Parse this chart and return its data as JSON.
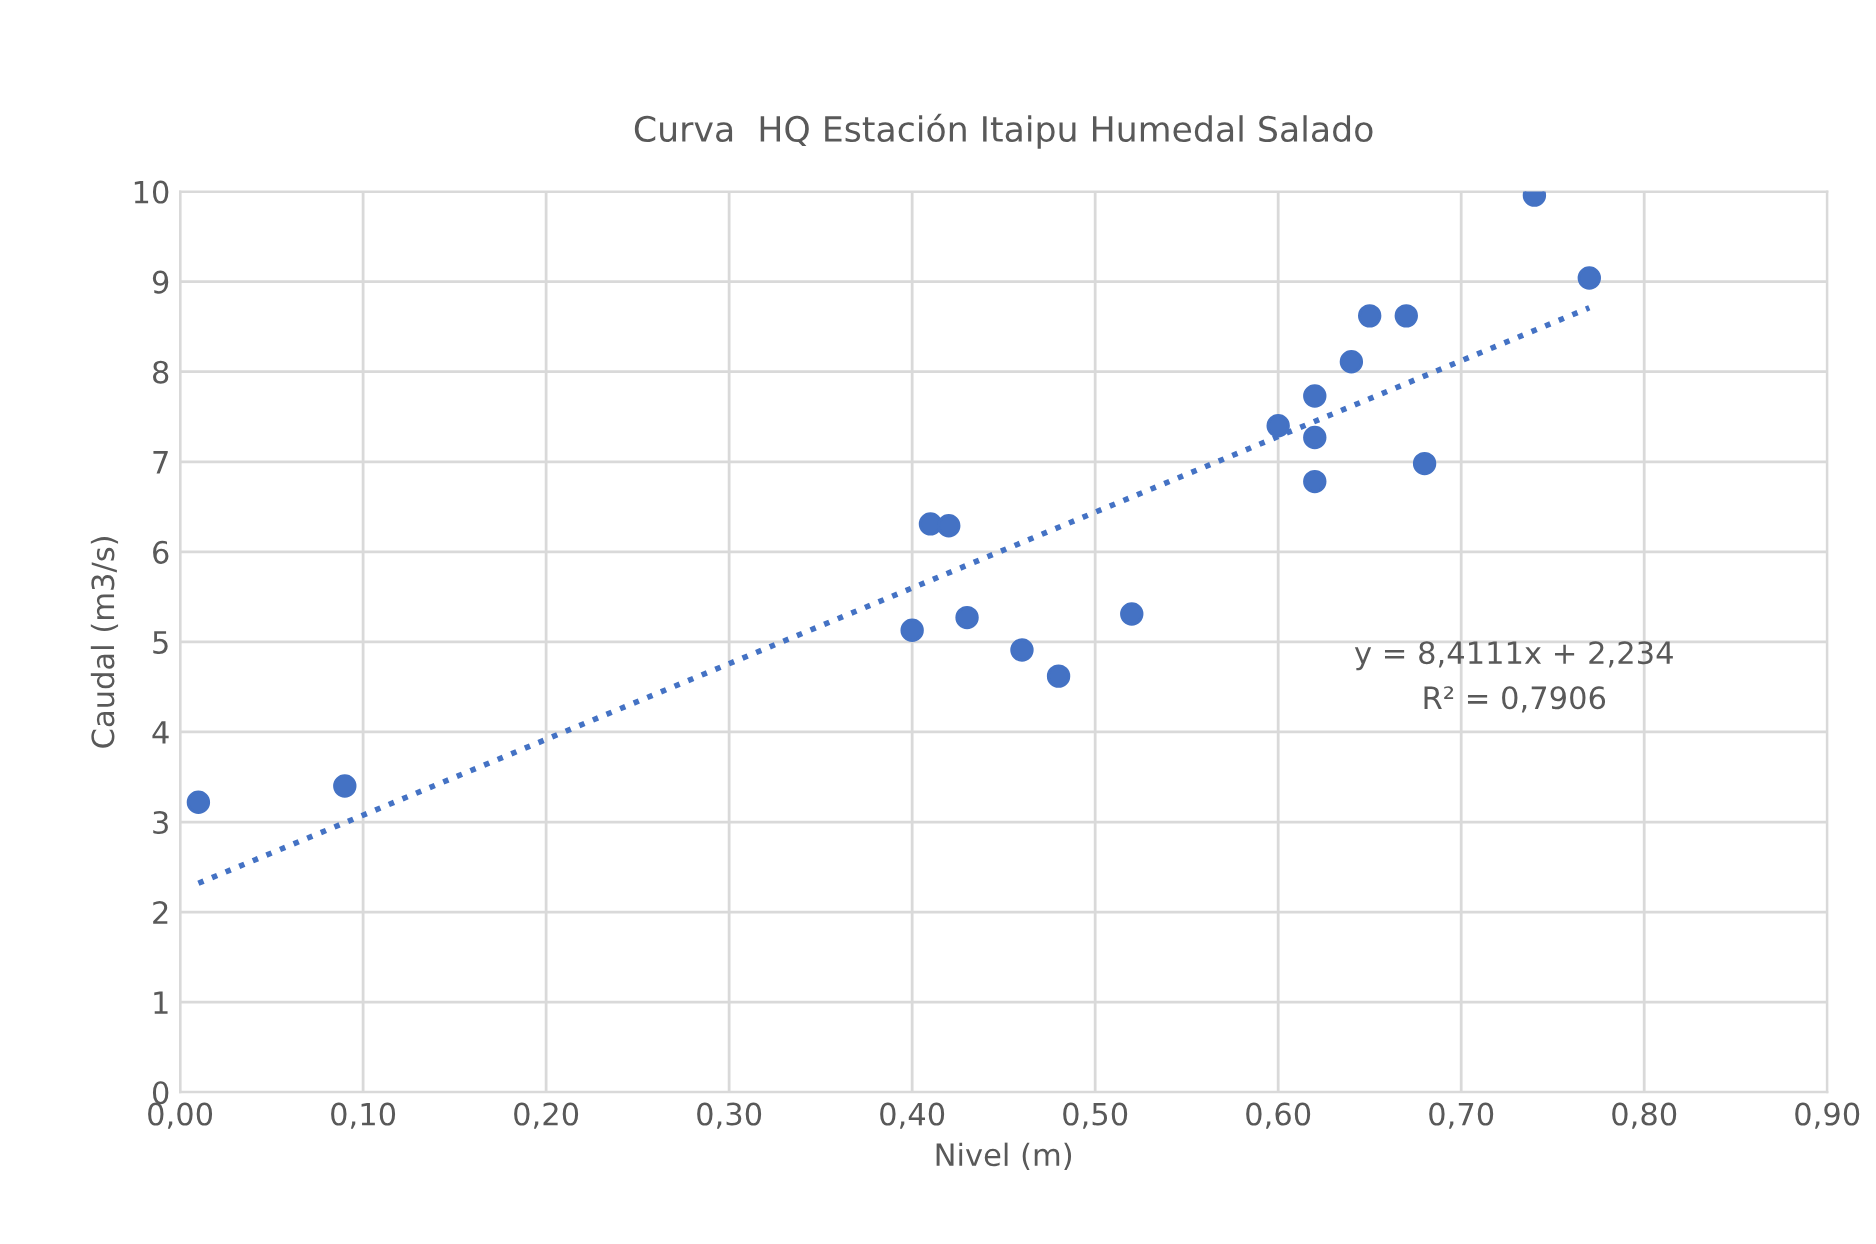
{
  "chart_data": {
    "type": "scatter",
    "title": "Curva  HQ Estación Itaipu Humedal Salado",
    "xlabel": "Nivel (m)",
    "ylabel": "Caudal (m3/s)",
    "series": [
      {
        "color": "#4472c4",
        "marker": "circle",
        "x": [
          0.01,
          0.09,
          0.4,
          0.41,
          0.42,
          0.43,
          0.46,
          0.48,
          0.52,
          0.6,
          0.62,
          0.62,
          0.62,
          0.64,
          0.65,
          0.67,
          0.68,
          0.74,
          0.77
        ],
        "values": [
          3.22,
          3.4,
          5.13,
          6.31,
          6.29,
          5.27,
          4.91,
          4.62,
          5.31,
          7.4,
          7.73,
          7.27,
          6.78,
          8.11,
          8.62,
          8.62,
          6.98,
          9.96,
          9.04
        ]
      },
      {
        "type": "line",
        "color": "#4472c4",
        "line_style": "dotted",
        "marker": "none",
        "x": [
          0.01,
          0.77
        ],
        "values": [
          2.32,
          8.71
        ]
      }
    ],
    "annotations": [
      "y = 8,4111x + 2,234",
      "R² = 0,7906"
    ],
    "xlim": [
      0,
      0.9
    ],
    "xticks": [
      {
        "value": 0,
        "label": "0,00"
      },
      {
        "value": 0.1,
        "label": "0,10"
      },
      {
        "value": 0.2,
        "label": "0,20"
      },
      {
        "value": 0.3,
        "label": "0,30"
      },
      {
        "value": 0.4,
        "label": "0,40"
      },
      {
        "value": 0.5,
        "label": "0,50"
      },
      {
        "value": 0.6,
        "label": "0,60"
      },
      {
        "value": 0.7,
        "label": "0,70"
      },
      {
        "value": 0.8,
        "label": "0,80"
      },
      {
        "value": 0.9,
        "label": "0,90"
      }
    ],
    "ylim": [
      0,
      10
    ],
    "yticks": [
      0,
      1,
      2,
      3,
      4,
      5,
      6,
      7,
      8,
      9,
      10
    ],
    "grid": true,
    "legend": false
  }
}
